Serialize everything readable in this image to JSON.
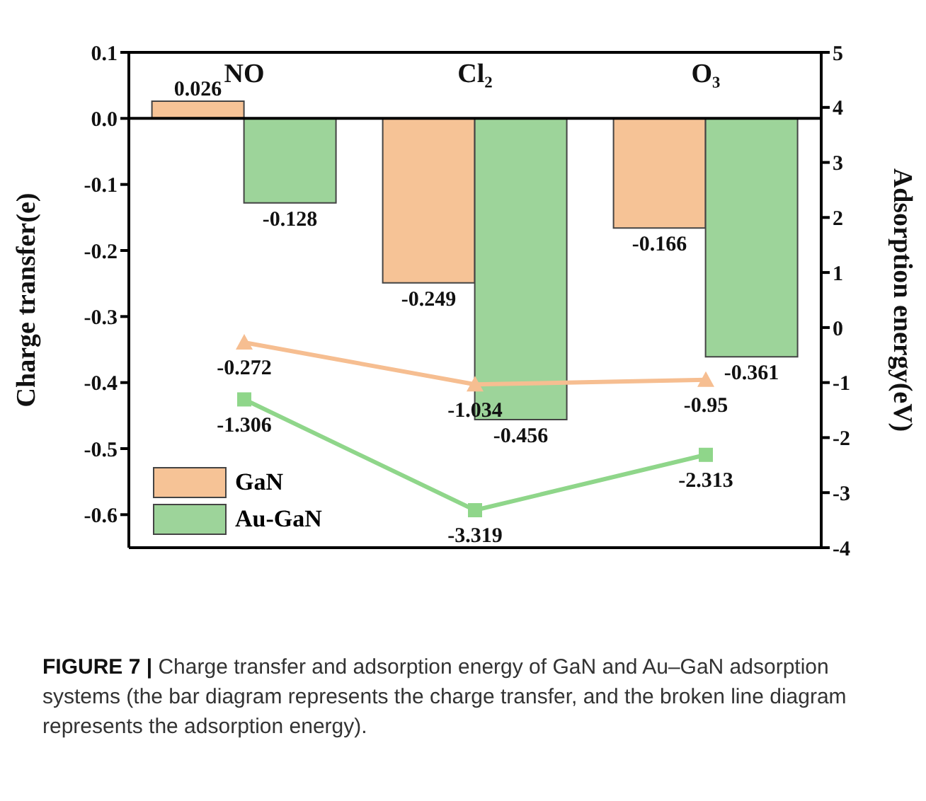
{
  "chart_data": {
    "type": "bar",
    "categories": [
      "NO",
      "Cl₂",
      "O₃"
    ],
    "ylabel": "Charge transfer(e)",
    "y2label": "Adsorption energy(eV)",
    "series": [
      {
        "name": "GaN",
        "color": "#f6c396",
        "values": [
          0.026,
          -0.249,
          -0.166
        ]
      },
      {
        "name": "Au-GaN",
        "color": "#9dd49a",
        "values": [
          -0.128,
          -0.456,
          -0.361
        ]
      },
      {
        "type": "line",
        "axis": "y2",
        "color": "#f6be91",
        "marker": "triangle",
        "values": [
          -0.272,
          -1.034,
          -0.95
        ]
      },
      {
        "type": "line",
        "axis": "y2",
        "color": "#8fd68a",
        "marker": "square",
        "values": [
          -1.306,
          -3.319,
          -2.313
        ]
      }
    ],
    "ylim": [
      -0.65,
      0.1
    ],
    "yticks": [
      0.1,
      {
        "value": 0,
        "label": "0.0"
      },
      -0.1,
      -0.2,
      -0.3,
      -0.4,
      -0.5,
      -0.6
    ],
    "y2lim": [
      -4,
      5
    ],
    "y2ticks": [
      5,
      4,
      3,
      2,
      1,
      0,
      -1,
      -2,
      -3,
      -4
    ],
    "ref_lines": [
      {
        "axis": "y",
        "value": 0
      }
    ],
    "data_labels": true,
    "grid": false,
    "legend": "bottom left",
    "annotations": [
      "FIGURE 7 |",
      "Charge transfer and adsorption energy of GaN and Au–GaN adsorption systems (the bar diagram represents the charge transfer, and the broken line diagram represents the adsorption energy)."
    ]
  }
}
